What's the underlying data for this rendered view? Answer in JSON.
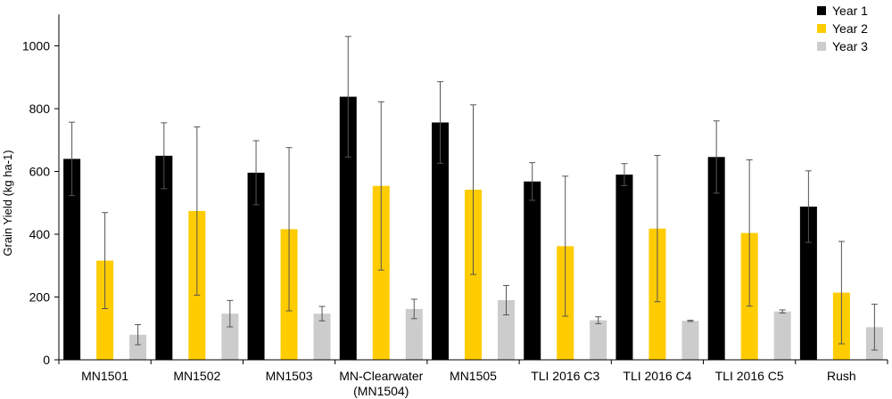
{
  "chart_data": {
    "type": "bar",
    "title": "",
    "ylabel": "Grain Yield (kg ha-1)",
    "xlabel": "",
    "ylim": [
      0,
      1100
    ],
    "yticks": [
      0,
      200,
      400,
      600,
      800,
      1000
    ],
    "grid": false,
    "legend_position": "top-right",
    "categories": [
      [
        "MN1501"
      ],
      [
        "MN1502"
      ],
      [
        "MN1503"
      ],
      [
        "MN-Clearwater",
        "(MN1504)"
      ],
      [
        "MN1505"
      ],
      [
        "TLI 2016 C3"
      ],
      [
        "TLI 2016 C4"
      ],
      [
        "TLI 2016 C5"
      ],
      [
        "Rush"
      ]
    ],
    "series": [
      {
        "name": "Year 1",
        "color": "#000000",
        "values": [
          640,
          650,
          596,
          838,
          756,
          568,
          590,
          646,
          488
        ],
        "error": [
          117,
          105,
          102,
          192,
          130,
          60,
          35,
          115,
          114
        ]
      },
      {
        "name": "Year 2",
        "color": "#FFCC00",
        "values": [
          316,
          474,
          416,
          554,
          542,
          362,
          418,
          404,
          214
        ],
        "error": [
          153,
          268,
          260,
          268,
          270,
          223,
          233,
          233,
          163
        ]
      },
      {
        "name": "Year 3",
        "color": "#CCCCCC",
        "values": [
          80,
          147,
          147,
          162,
          190,
          126,
          124,
          154,
          104
        ],
        "error": [
          32,
          42,
          23,
          31,
          47,
          11,
          2,
          5,
          73
        ]
      }
    ]
  }
}
